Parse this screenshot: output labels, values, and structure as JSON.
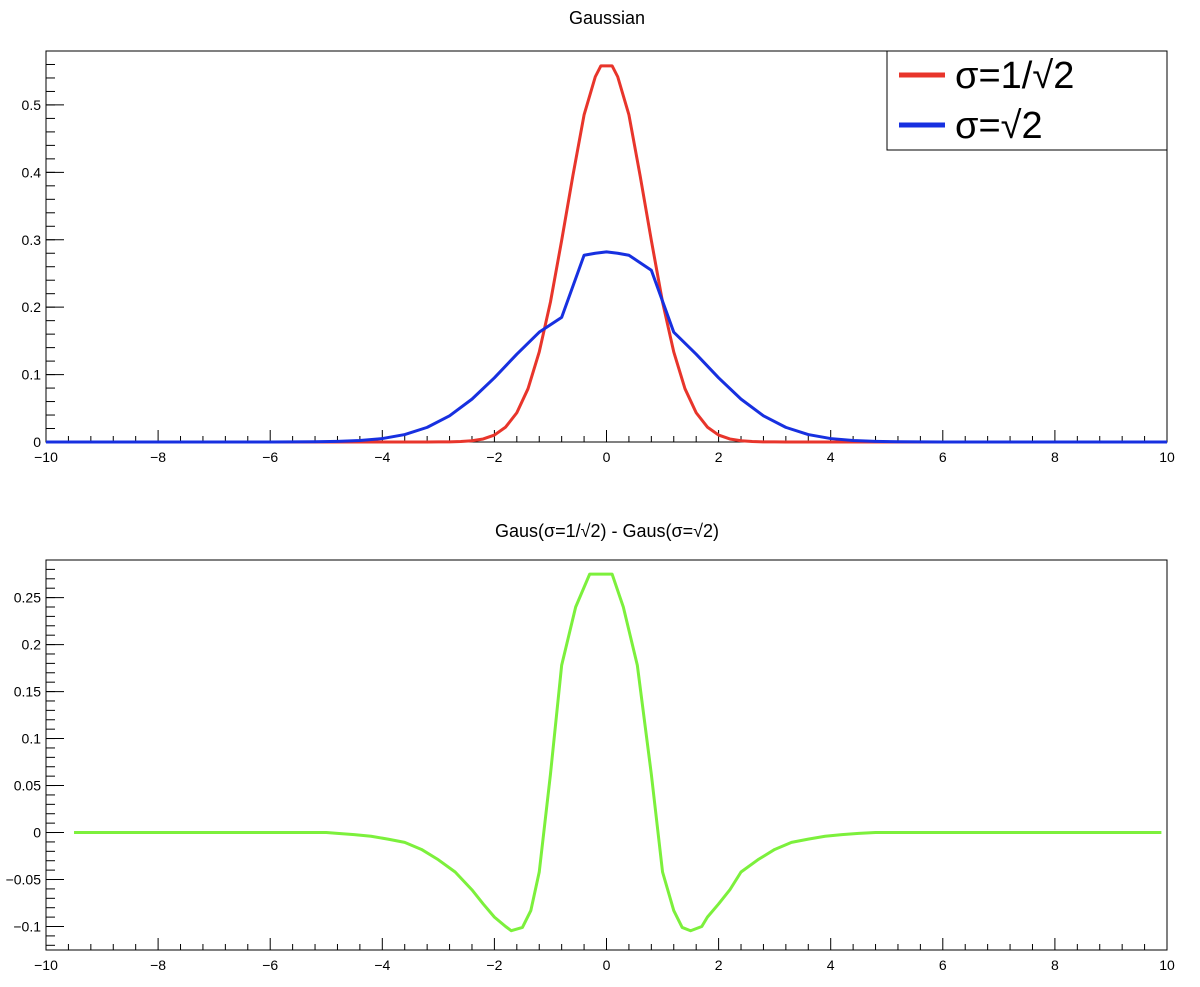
{
  "chart_data": [
    {
      "type": "line",
      "title": "Gaussian",
      "xlim": [
        -10,
        10
      ],
      "ylim": [
        0,
        0.58
      ],
      "x_ticks": [
        -10,
        -8,
        -6,
        -4,
        -2,
        0,
        2,
        4,
        6,
        8,
        10
      ],
      "x_tick_labels": [
        "−10",
        "−8",
        "−6",
        "−4",
        "−2",
        "0",
        "2",
        "4",
        "6",
        "8",
        "10"
      ],
      "y_ticks": [
        0,
        0.1,
        0.2,
        0.3,
        0.4,
        0.5
      ],
      "y_tick_labels": [
        "0",
        "0.1",
        "0.2",
        "0.3",
        "0.4",
        "0.5"
      ],
      "grid": false,
      "legend_position": "top-right",
      "series": [
        {
          "name": "σ=1/√2",
          "color": "#e8352b",
          "x": [
            -10.0,
            -9.8,
            -9.6,
            -9.4,
            -9.2,
            -9.0,
            -8.8,
            -8.6,
            -8.4,
            -8.2,
            -8.0,
            -7.8,
            -7.6,
            -7.4,
            -7.2,
            -7.0,
            -6.8,
            -6.6,
            -6.4,
            -6.2,
            -6.0,
            -5.8,
            -5.6,
            -5.4,
            -5.2,
            -5.0,
            -4.8,
            -4.6,
            -4.4,
            -4.2,
            -4.0,
            -3.8,
            -3.6,
            -3.4,
            -3.2,
            -3.0,
            -2.8,
            -2.6,
            -2.4,
            -2.2,
            -2.0,
            -1.8,
            -1.6,
            -1.4,
            -1.2,
            -1.0,
            -0.8,
            -0.6,
            -0.4,
            -0.2,
            -0.1,
            0.1,
            0.2,
            0.4,
            0.6,
            0.8,
            1.0,
            1.2,
            1.4,
            1.6,
            1.8,
            2.0,
            2.2,
            2.4,
            2.6,
            2.8,
            3.0,
            3.2,
            3.4,
            3.6,
            3.8,
            4.0,
            4.2,
            4.4,
            4.6,
            4.8,
            5.0,
            5.2,
            5.4,
            5.6,
            5.8,
            6.0,
            6.2,
            6.4,
            6.6,
            6.8,
            7.0,
            7.2,
            7.4,
            7.6,
            7.8,
            8.0,
            8.2,
            8.4,
            8.6,
            8.8,
            9.0,
            9.2,
            9.4,
            9.6,
            9.8,
            10.0
          ],
          "y": [
            0,
            0,
            0,
            0,
            0,
            0,
            0,
            0,
            0,
            0,
            0,
            0,
            0,
            0,
            0,
            0,
            0,
            0,
            0,
            0,
            0,
            0,
            0,
            0,
            0,
            0,
            0,
            0,
            0,
            0,
            0,
            0,
            0,
            0,
            0,
            0.0001,
            0.0002,
            0.0007,
            0.0018,
            0.0045,
            0.0103,
            0.0221,
            0.0434,
            0.0791,
            0.1336,
            0.2076,
            0.299,
            0.395,
            0.4853,
            0.5418,
            0.558,
            0.558,
            0.5418,
            0.4853,
            0.395,
            0.299,
            0.2076,
            0.1336,
            0.0791,
            0.0434,
            0.0221,
            0.0103,
            0.0045,
            0.0018,
            0.0007,
            0.0002,
            0.0001,
            0,
            0,
            0,
            0,
            0,
            0,
            0,
            0,
            0,
            0,
            0,
            0,
            0,
            0,
            0,
            0,
            0,
            0,
            0,
            0,
            0,
            0,
            0,
            0,
            0,
            0,
            0,
            0,
            0,
            0,
            0,
            0,
            0,
            0,
            0
          ]
        },
        {
          "name": "σ=√2",
          "color": "#1730e0",
          "x": [
            -10.0,
            -9.6,
            -9.2,
            -8.8,
            -8.4,
            -8.0,
            -7.6,
            -7.2,
            -6.8,
            -6.4,
            -6.0,
            -5.6,
            -5.2,
            -4.8,
            -4.4,
            -4.0,
            -3.6,
            -3.2,
            -2.8,
            -2.4,
            -2.0,
            -1.6,
            -1.2,
            -0.8,
            -0.4,
            -0.2,
            0.0,
            0.2,
            0.4,
            0.8,
            1.2,
            1.6,
            2.0,
            2.4,
            2.8,
            3.2,
            3.6,
            4.0,
            4.4,
            4.8,
            5.2,
            5.6,
            6.0,
            6.4,
            6.8,
            7.2,
            7.6,
            8.0,
            8.4,
            8.8,
            9.2,
            9.6,
            10.0
          ],
          "y": [
            0,
            0,
            0,
            0,
            0,
            0,
            0,
            0,
            0,
            0,
            0,
            0.0001,
            0.0003,
            0.0009,
            0.0022,
            0.0051,
            0.011,
            0.0217,
            0.0388,
            0.0636,
            0.0952,
            0.1303,
            0.1629,
            0.1848,
            0.277,
            0.28,
            0.2821,
            0.28,
            0.277,
            0.2548,
            0.1629,
            0.1303,
            0.0952,
            0.0636,
            0.0388,
            0.0217,
            0.011,
            0.0051,
            0.0022,
            0.0009,
            0.0003,
            0.0001,
            0,
            0,
            0,
            0,
            0,
            0,
            0,
            0,
            0,
            0,
            0
          ]
        }
      ]
    },
    {
      "type": "line",
      "title": "Gaus(σ=1/√2) - Gaus(σ=√2)",
      "xlim": [
        -10,
        10
      ],
      "ylim": [
        -0.125,
        0.29
      ],
      "x_ticks": [
        -10,
        -8,
        -6,
        -4,
        -2,
        0,
        2,
        4,
        6,
        8,
        10
      ],
      "x_tick_labels": [
        "−10",
        "−8",
        "−6",
        "−4",
        "−2",
        "0",
        "2",
        "4",
        "6",
        "8",
        "10"
      ],
      "y_ticks": [
        -0.1,
        -0.05,
        0,
        0.05,
        0.1,
        0.15,
        0.2,
        0.25
      ],
      "y_tick_labels": [
        "−0.1",
        "−0.05",
        "0",
        "0.05",
        "0.1",
        "0.15",
        "0.2",
        "0.25"
      ],
      "grid": false,
      "series": [
        {
          "color": "#7cf03c",
          "x": [
            -9.5,
            -9.0,
            -8.5,
            -8.0,
            -7.5,
            -7.0,
            -6.5,
            -6.0,
            -5.5,
            -5.0,
            -4.8,
            -4.5,
            -4.2,
            -3.9,
            -3.6,
            -3.3,
            -3.0,
            -2.7,
            -2.4,
            -2.2,
            -2.0,
            -1.8,
            -1.7,
            -1.5,
            -1.35,
            -1.2,
            -1.0,
            -0.8,
            -0.55,
            -0.3,
            -0.1,
            0.1,
            0.3,
            0.55,
            0.8,
            1.0,
            1.2,
            1.35,
            1.5,
            1.7,
            1.8,
            2.0,
            2.2,
            2.4,
            2.7,
            3.0,
            3.3,
            3.6,
            3.9,
            4.2,
            4.5,
            4.8,
            5.0,
            5.5,
            6.0,
            6.5,
            7.0,
            7.5,
            8.0,
            8.5,
            9.0,
            9.5,
            9.9
          ],
          "y": [
            0,
            0,
            0,
            0,
            0,
            0,
            0,
            0,
            0,
            0,
            -0.0009,
            -0.0022,
            -0.004,
            -0.007,
            -0.0105,
            -0.018,
            -0.029,
            -0.042,
            -0.061,
            -0.076,
            -0.09,
            -0.1,
            -0.1045,
            -0.101,
            -0.083,
            -0.042,
            0.062,
            0.178,
            0.24,
            0.275,
            0.275,
            0.275,
            0.24,
            0.178,
            0.062,
            -0.042,
            -0.083,
            -0.101,
            -0.1045,
            -0.1,
            -0.09,
            -0.076,
            -0.061,
            -0.042,
            -0.029,
            -0.018,
            -0.0105,
            -0.007,
            -0.004,
            -0.0022,
            -0.0009,
            0,
            0,
            0,
            0,
            0,
            0,
            0,
            0,
            0,
            0,
            0,
            0
          ]
        }
      ]
    }
  ]
}
